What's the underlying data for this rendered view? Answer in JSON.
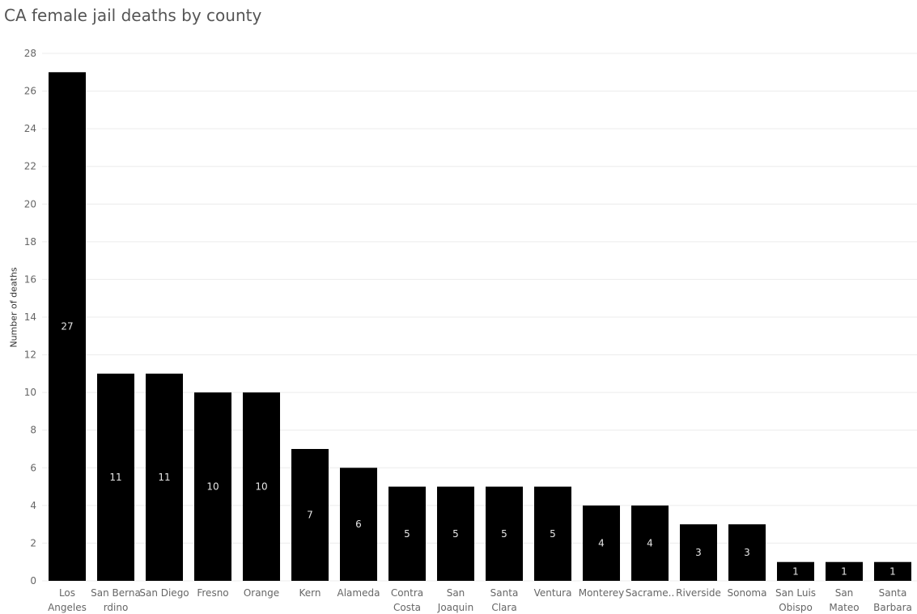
{
  "chart_data": {
    "type": "bar",
    "title": "CA female jail deaths by county",
    "ylabel": "Number of deaths",
    "xlabel": "",
    "ylim": [
      0,
      28
    ],
    "yticks": [
      0,
      2,
      4,
      6,
      8,
      10,
      12,
      14,
      16,
      18,
      20,
      22,
      24,
      26,
      28
    ],
    "grid": true,
    "bar_color": "#000000",
    "categories": [
      "Los Angeles",
      "San Bernardino",
      "San Diego",
      "Fresno",
      "Orange",
      "Kern",
      "Alameda",
      "Contra Costa",
      "San Joaquin",
      "Santa Clara",
      "Ventura",
      "Monterey",
      "Sacrame..",
      "Riverside",
      "Sonoma",
      "San Luis Obispo",
      "San Mateo",
      "Santa Barbara"
    ],
    "category_label_lines": [
      [
        "Los",
        "Angeles"
      ],
      [
        "San Berna",
        "rdino"
      ],
      [
        "San Diego"
      ],
      [
        "Fresno"
      ],
      [
        "Orange"
      ],
      [
        "Kern"
      ],
      [
        "Alameda"
      ],
      [
        "Contra",
        "Costa"
      ],
      [
        "San",
        "Joaquin"
      ],
      [
        "Santa",
        "Clara"
      ],
      [
        "Ventura"
      ],
      [
        "Monterey"
      ],
      [
        "Sacrame.."
      ],
      [
        "Riverside"
      ],
      [
        "Sonoma"
      ],
      [
        "San Luis",
        "Obispo"
      ],
      [
        "San",
        "Mateo"
      ],
      [
        "Santa",
        "Barbara"
      ]
    ],
    "values": [
      27,
      11,
      11,
      10,
      10,
      7,
      6,
      5,
      5,
      5,
      5,
      4,
      4,
      3,
      3,
      1,
      1,
      1
    ]
  }
}
